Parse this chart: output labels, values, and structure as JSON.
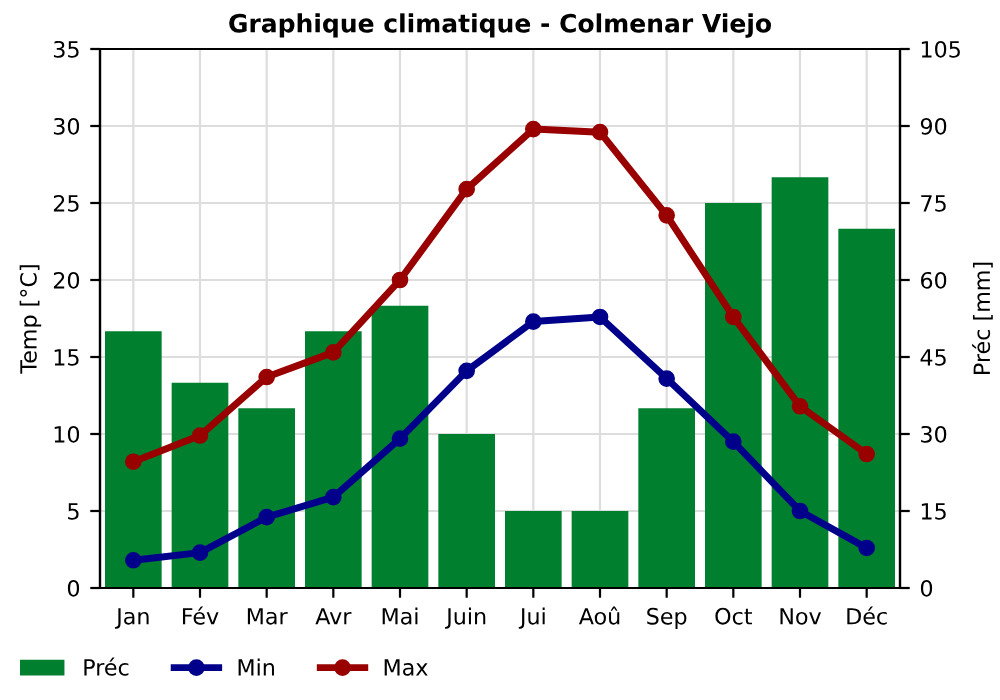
{
  "chart_data": {
    "type": "line",
    "title": "Graphique climatique - Colmenar Viejo",
    "ylabel": "Temp [°C]",
    "y2label": "Préc [mm]",
    "categories": [
      "Jan",
      "Fév",
      "Mar",
      "Avr",
      "Mai",
      "Juin",
      "Jui",
      "Aoû",
      "Sep",
      "Oct",
      "Nov",
      "Déc"
    ],
    "series": [
      {
        "name": "Préc",
        "type": "bar",
        "axis": "y2",
        "color": "#007f2f",
        "values": [
          50,
          40,
          35,
          50,
          55,
          30,
          15,
          15,
          35,
          75,
          80,
          70
        ]
      },
      {
        "name": "Min",
        "color": "#00008b",
        "values": [
          1.8,
          2.3,
          4.6,
          5.9,
          9.7,
          14.1,
          17.3,
          17.6,
          13.6,
          9.5,
          5.0,
          2.6
        ]
      },
      {
        "name": "Max",
        "color": "#990000",
        "values": [
          8.2,
          9.9,
          13.7,
          15.3,
          20.0,
          25.9,
          29.8,
          29.6,
          24.2,
          17.6,
          11.8,
          8.7
        ]
      }
    ],
    "ylim": [
      0,
      35
    ],
    "yticks": [
      0,
      5,
      10,
      15,
      20,
      25,
      30,
      35
    ],
    "y2lim": [
      0,
      105
    ],
    "y2ticks": [
      0,
      15,
      30,
      45,
      60,
      75,
      90,
      105
    ],
    "grid": true,
    "legend": "bottom left",
    "marker": "circle",
    "line_style": "solid"
  }
}
